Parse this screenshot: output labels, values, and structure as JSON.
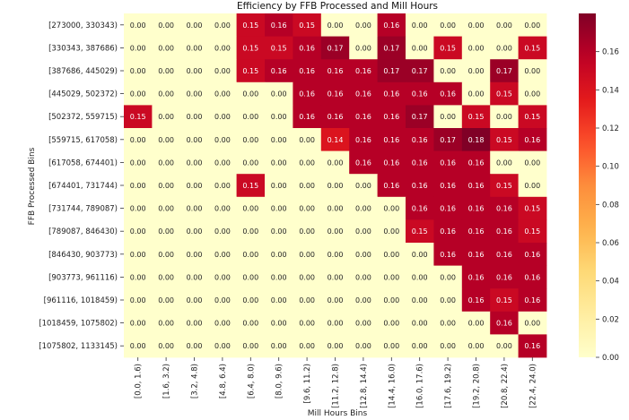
{
  "chart_data": {
    "type": "heatmap",
    "title": "Efficiency by FFB Processed and Mill Hours",
    "xlabel": "Mill Hours Bins",
    "ylabel": "FFB Processed Bins",
    "x_categories": [
      "[0.0, 1.6)",
      "[1.6, 3.2)",
      "[3.2, 4.8)",
      "[4.8, 6.4)",
      "[6.4, 8.0)",
      "[8.0, 9.6)",
      "[9.6, 11.2)",
      "[11.2, 12.8)",
      "[12.8, 14.4)",
      "[14.4, 16.0)",
      "[16.0, 17.6)",
      "[17.6, 19.2)",
      "[19.2, 20.8)",
      "[20.8, 22.4)",
      "[22.4, 24.0)"
    ],
    "y_categories": [
      "[273000, 330343)",
      "[330343, 387686)",
      "[387686, 445029)",
      "[445029, 502372)",
      "[502372, 559715)",
      "[559715, 617058)",
      "[617058, 674401)",
      "[674401, 731744)",
      "[731744, 789087)",
      "[789087, 846430)",
      "[846430, 903773)",
      "[903773, 961116)",
      "[961116, 1018459)",
      "[1018459, 1075802)",
      "[1075802, 1133145)"
    ],
    "values": [
      [
        0.0,
        0.0,
        0.0,
        0.0,
        0.15,
        0.16,
        0.15,
        0.0,
        0.0,
        0.16,
        0.0,
        0.0,
        0.0,
        0.0,
        0.0
      ],
      [
        0.0,
        0.0,
        0.0,
        0.0,
        0.15,
        0.15,
        0.16,
        0.17,
        0.0,
        0.17,
        0.0,
        0.15,
        0.0,
        0.0,
        0.15
      ],
      [
        0.0,
        0.0,
        0.0,
        0.0,
        0.15,
        0.16,
        0.16,
        0.16,
        0.16,
        0.17,
        0.17,
        0.0,
        0.0,
        0.17,
        0.0
      ],
      [
        0.0,
        0.0,
        0.0,
        0.0,
        0.0,
        0.0,
        0.16,
        0.16,
        0.16,
        0.16,
        0.16,
        0.16,
        0.0,
        0.15,
        0.0
      ],
      [
        0.15,
        0.0,
        0.0,
        0.0,
        0.0,
        0.0,
        0.16,
        0.16,
        0.16,
        0.16,
        0.17,
        0.0,
        0.15,
        0.0,
        0.15
      ],
      [
        0.0,
        0.0,
        0.0,
        0.0,
        0.0,
        0.0,
        0.0,
        0.14,
        0.16,
        0.16,
        0.16,
        0.17,
        0.18,
        0.15,
        0.16
      ],
      [
        0.0,
        0.0,
        0.0,
        0.0,
        0.0,
        0.0,
        0.0,
        0.0,
        0.16,
        0.16,
        0.16,
        0.16,
        0.16,
        0.0,
        0.0
      ],
      [
        0.0,
        0.0,
        0.0,
        0.0,
        0.15,
        0.0,
        0.0,
        0.0,
        0.0,
        0.16,
        0.16,
        0.16,
        0.16,
        0.15,
        0.0
      ],
      [
        0.0,
        0.0,
        0.0,
        0.0,
        0.0,
        0.0,
        0.0,
        0.0,
        0.0,
        0.0,
        0.16,
        0.16,
        0.16,
        0.16,
        0.15
      ],
      [
        0.0,
        0.0,
        0.0,
        0.0,
        0.0,
        0.0,
        0.0,
        0.0,
        0.0,
        0.0,
        0.15,
        0.16,
        0.16,
        0.16,
        0.15
      ],
      [
        0.0,
        0.0,
        0.0,
        0.0,
        0.0,
        0.0,
        0.0,
        0.0,
        0.0,
        0.0,
        0.0,
        0.16,
        0.16,
        0.16,
        0.16
      ],
      [
        0.0,
        0.0,
        0.0,
        0.0,
        0.0,
        0.0,
        0.0,
        0.0,
        0.0,
        0.0,
        0.0,
        0.0,
        0.16,
        0.16,
        0.16
      ],
      [
        0.0,
        0.0,
        0.0,
        0.0,
        0.0,
        0.0,
        0.0,
        0.0,
        0.0,
        0.0,
        0.0,
        0.0,
        0.16,
        0.15,
        0.16
      ],
      [
        0.0,
        0.0,
        0.0,
        0.0,
        0.0,
        0.0,
        0.0,
        0.0,
        0.0,
        0.0,
        0.0,
        0.0,
        0.0,
        0.16,
        0.0
      ],
      [
        0.0,
        0.0,
        0.0,
        0.0,
        0.0,
        0.0,
        0.0,
        0.0,
        0.0,
        0.0,
        0.0,
        0.0,
        0.0,
        0.0,
        0.16
      ]
    ],
    "value_format": "0.00",
    "colormap": "YlOrRd",
    "color_range": [
      0.0,
      0.18
    ],
    "colorbar_ticks": [
      0.0,
      0.02,
      0.04,
      0.06,
      0.08,
      0.1,
      0.12,
      0.14,
      0.16
    ],
    "colorbar_tick_labels": [
      "0.00",
      "0.02",
      "0.04",
      "0.06",
      "0.08",
      "0.10",
      "0.12",
      "0.14",
      "0.16"
    ],
    "grid": false,
    "legend": "colorbar-right"
  }
}
